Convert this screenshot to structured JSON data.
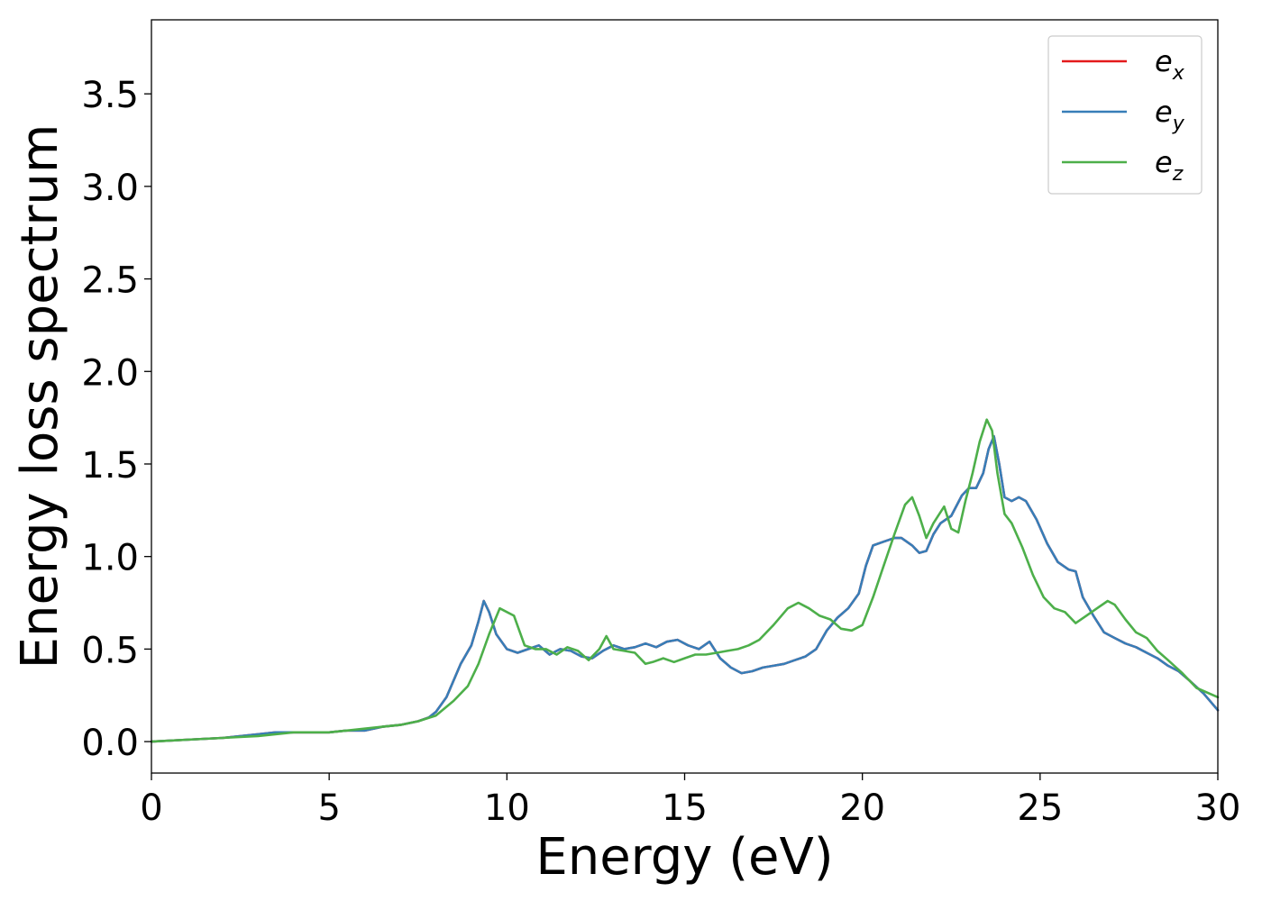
{
  "chart_data": {
    "type": "line",
    "title": "",
    "xlabel": "Energy (eV)",
    "ylabel": "Energy loss spectrum",
    "xlim": [
      0,
      30
    ],
    "ylim": [
      -0.17,
      3.9
    ],
    "xticks": [
      0,
      5,
      10,
      15,
      20,
      25,
      30
    ],
    "xtick_labels": [
      "0",
      "5",
      "10",
      "15",
      "20",
      "25",
      "30"
    ],
    "yticks": [
      0.0,
      0.5,
      1.0,
      1.5,
      2.0,
      2.5,
      3.0,
      3.5
    ],
    "ytick_labels": [
      "0.0",
      "0.5",
      "1.0",
      "1.5",
      "2.0",
      "2.5",
      "3.0",
      "3.5"
    ],
    "grid": false,
    "legend_position": "top-right",
    "series": [
      {
        "name": "e_x",
        "legend_base": "e",
        "legend_sub": "x",
        "color": "#e41a1c",
        "x": [
          0,
          1,
          2,
          3,
          3.5,
          4,
          5,
          5.5,
          6,
          6.5,
          7,
          7.5,
          7.8,
          8,
          8.3,
          8.7,
          9,
          9.2,
          9.35,
          9.5,
          9.7,
          10,
          10.3,
          10.6,
          10.9,
          11.2,
          11.5,
          11.8,
          12.1,
          12.4,
          12.7,
          13,
          13.3,
          13.6,
          13.9,
          14.2,
          14.5,
          14.8,
          15.1,
          15.4,
          15.7,
          16,
          16.3,
          16.6,
          16.9,
          17.2,
          17.5,
          17.8,
          18.1,
          18.4,
          18.7,
          19,
          19.3,
          19.6,
          19.9,
          20.1,
          20.3,
          20.6,
          20.9,
          21.1,
          21.4,
          21.6,
          21.8,
          22,
          22.2,
          22.5,
          22.8,
          23,
          23.2,
          23.4,
          23.55,
          23.7,
          23.85,
          24,
          24.2,
          24.4,
          24.6,
          24.9,
          25.2,
          25.5,
          25.8,
          26,
          26.2,
          26.5,
          26.8,
          27.1,
          27.4,
          27.7,
          28,
          28.3,
          28.6,
          28.9,
          29.2,
          29.6,
          30
        ],
        "y": [
          0.0,
          0.01,
          0.02,
          0.04,
          0.05,
          0.05,
          0.05,
          0.06,
          0.06,
          0.08,
          0.09,
          0.11,
          0.13,
          0.16,
          0.24,
          0.42,
          0.52,
          0.65,
          0.76,
          0.7,
          0.58,
          0.5,
          0.48,
          0.5,
          0.52,
          0.47,
          0.5,
          0.49,
          0.46,
          0.45,
          0.49,
          0.52,
          0.5,
          0.51,
          0.53,
          0.51,
          0.54,
          0.55,
          0.52,
          0.5,
          0.54,
          0.45,
          0.4,
          0.37,
          0.38,
          0.4,
          0.41,
          0.42,
          0.44,
          0.46,
          0.5,
          0.6,
          0.67,
          0.72,
          0.8,
          0.95,
          1.06,
          1.08,
          1.1,
          1.1,
          1.06,
          1.02,
          1.03,
          1.12,
          1.18,
          1.22,
          1.33,
          1.37,
          1.37,
          1.45,
          1.58,
          1.65,
          1.5,
          1.32,
          1.3,
          1.32,
          1.3,
          1.2,
          1.07,
          0.97,
          0.93,
          0.92,
          0.78,
          0.68,
          0.59,
          0.56,
          0.53,
          0.51,
          0.48,
          0.45,
          0.41,
          0.38,
          0.33,
          0.26,
          0.17
        ]
      },
      {
        "name": "e_y",
        "legend_base": "e",
        "legend_sub": "y",
        "color": "#377eb8",
        "x": [
          0,
          1,
          2,
          3,
          3.5,
          4,
          5,
          5.5,
          6,
          6.5,
          7,
          7.5,
          7.8,
          8,
          8.3,
          8.7,
          9,
          9.2,
          9.35,
          9.5,
          9.7,
          10,
          10.3,
          10.6,
          10.9,
          11.2,
          11.5,
          11.8,
          12.1,
          12.4,
          12.7,
          13,
          13.3,
          13.6,
          13.9,
          14.2,
          14.5,
          14.8,
          15.1,
          15.4,
          15.7,
          16,
          16.3,
          16.6,
          16.9,
          17.2,
          17.5,
          17.8,
          18.1,
          18.4,
          18.7,
          19,
          19.3,
          19.6,
          19.9,
          20.1,
          20.3,
          20.6,
          20.9,
          21.1,
          21.4,
          21.6,
          21.8,
          22,
          22.2,
          22.5,
          22.8,
          23,
          23.2,
          23.4,
          23.55,
          23.7,
          23.85,
          24,
          24.2,
          24.4,
          24.6,
          24.9,
          25.2,
          25.5,
          25.8,
          26,
          26.2,
          26.5,
          26.8,
          27.1,
          27.4,
          27.7,
          28,
          28.3,
          28.6,
          28.9,
          29.2,
          29.6,
          30
        ],
        "y": [
          0.0,
          0.01,
          0.02,
          0.04,
          0.05,
          0.05,
          0.05,
          0.06,
          0.06,
          0.08,
          0.09,
          0.11,
          0.13,
          0.16,
          0.24,
          0.42,
          0.52,
          0.65,
          0.76,
          0.7,
          0.58,
          0.5,
          0.48,
          0.5,
          0.52,
          0.47,
          0.5,
          0.49,
          0.46,
          0.45,
          0.49,
          0.52,
          0.5,
          0.51,
          0.53,
          0.51,
          0.54,
          0.55,
          0.52,
          0.5,
          0.54,
          0.45,
          0.4,
          0.37,
          0.38,
          0.4,
          0.41,
          0.42,
          0.44,
          0.46,
          0.5,
          0.6,
          0.67,
          0.72,
          0.8,
          0.95,
          1.06,
          1.08,
          1.1,
          1.1,
          1.06,
          1.02,
          1.03,
          1.12,
          1.18,
          1.22,
          1.33,
          1.37,
          1.37,
          1.45,
          1.58,
          1.65,
          1.5,
          1.32,
          1.3,
          1.32,
          1.3,
          1.2,
          1.07,
          0.97,
          0.93,
          0.92,
          0.78,
          0.68,
          0.59,
          0.56,
          0.53,
          0.51,
          0.48,
          0.45,
          0.41,
          0.38,
          0.33,
          0.26,
          0.17
        ]
      },
      {
        "name": "e_z",
        "legend_base": "e",
        "legend_sub": "z",
        "color": "#4daf4a",
        "x": [
          0,
          1,
          2,
          3,
          4,
          5,
          5.5,
          6,
          6.5,
          7,
          7.5,
          8,
          8.5,
          8.9,
          9.2,
          9.5,
          9.8,
          10.2,
          10.5,
          10.8,
          11.1,
          11.4,
          11.7,
          12,
          12.3,
          12.6,
          12.8,
          13,
          13.3,
          13.6,
          13.9,
          14.1,
          14.4,
          14.7,
          15,
          15.3,
          15.6,
          15.9,
          16.2,
          16.5,
          16.8,
          17.1,
          17.5,
          17.9,
          18.2,
          18.5,
          18.8,
          19.1,
          19.4,
          19.7,
          20,
          20.3,
          20.6,
          20.9,
          21.2,
          21.4,
          21.6,
          21.8,
          22,
          22.3,
          22.5,
          22.7,
          22.9,
          23.1,
          23.3,
          23.5,
          23.65,
          23.8,
          24,
          24.2,
          24.5,
          24.8,
          25.1,
          25.4,
          25.7,
          26,
          26.3,
          26.6,
          26.9,
          27.1,
          27.4,
          27.7,
          28,
          28.3,
          28.6,
          29,
          29.4,
          30
        ],
        "y": [
          0.0,
          0.01,
          0.02,
          0.03,
          0.05,
          0.05,
          0.06,
          0.07,
          0.08,
          0.09,
          0.11,
          0.14,
          0.22,
          0.3,
          0.42,
          0.58,
          0.72,
          0.68,
          0.52,
          0.5,
          0.5,
          0.47,
          0.51,
          0.49,
          0.44,
          0.5,
          0.57,
          0.5,
          0.49,
          0.48,
          0.42,
          0.43,
          0.45,
          0.43,
          0.45,
          0.47,
          0.47,
          0.48,
          0.49,
          0.5,
          0.52,
          0.55,
          0.63,
          0.72,
          0.75,
          0.72,
          0.68,
          0.66,
          0.61,
          0.6,
          0.63,
          0.78,
          0.95,
          1.12,
          1.28,
          1.32,
          1.22,
          1.1,
          1.18,
          1.27,
          1.15,
          1.13,
          1.3,
          1.45,
          1.62,
          1.74,
          1.68,
          1.45,
          1.23,
          1.18,
          1.05,
          0.9,
          0.78,
          0.72,
          0.7,
          0.64,
          0.68,
          0.72,
          0.76,
          0.74,
          0.66,
          0.59,
          0.56,
          0.49,
          0.44,
          0.37,
          0.29,
          0.24
        ]
      }
    ]
  }
}
